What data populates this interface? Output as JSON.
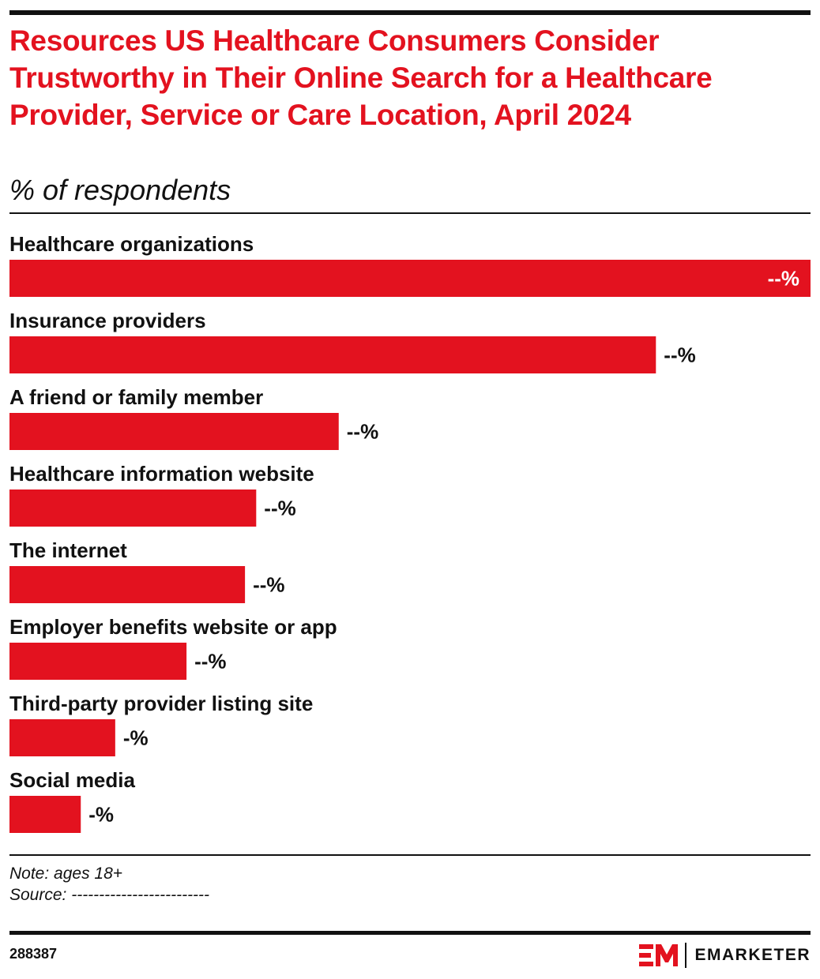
{
  "header": {
    "title": "Resources US Healthcare Consumers Consider Trustworthy in Their Online Search for a Healthcare Provider, Service or Care Location, April 2024",
    "subtitle": "% of respondents"
  },
  "chart_data": {
    "type": "bar",
    "orientation": "horizontal",
    "title": "Resources US Healthcare Consumers Consider Trustworthy in Their Online Search for a Healthcare Provider, Service or Care Location, April 2024",
    "subtitle": "% of respondents",
    "categories": [
      "Healthcare organizations",
      "Insurance providers",
      "A friend or family member",
      "Healthcare information website",
      "The internet",
      "Employer benefits website or app",
      "Third-party provider listing site",
      "Social media"
    ],
    "values": [
      100,
      80.7,
      41.1,
      30.8,
      29.4,
      22.1,
      13.2,
      8.9
    ],
    "value_labels": [
      "--%",
      "--%",
      "--%",
      "--%",
      "--%",
      "--%",
      "-%",
      "-%"
    ],
    "value_scale": "relative (0-100, bar length as share of largest bar; actual percentages hidden)",
    "xlim": [
      0,
      100
    ],
    "grid": false,
    "legend": "none",
    "bar_color": "#e3121f"
  },
  "footer": {
    "note": "Note: ages 18+",
    "source": "Source: -------------------------",
    "chart_id": "288387",
    "brand_name": "EMARKETER",
    "brand_color": "#e3121f"
  }
}
